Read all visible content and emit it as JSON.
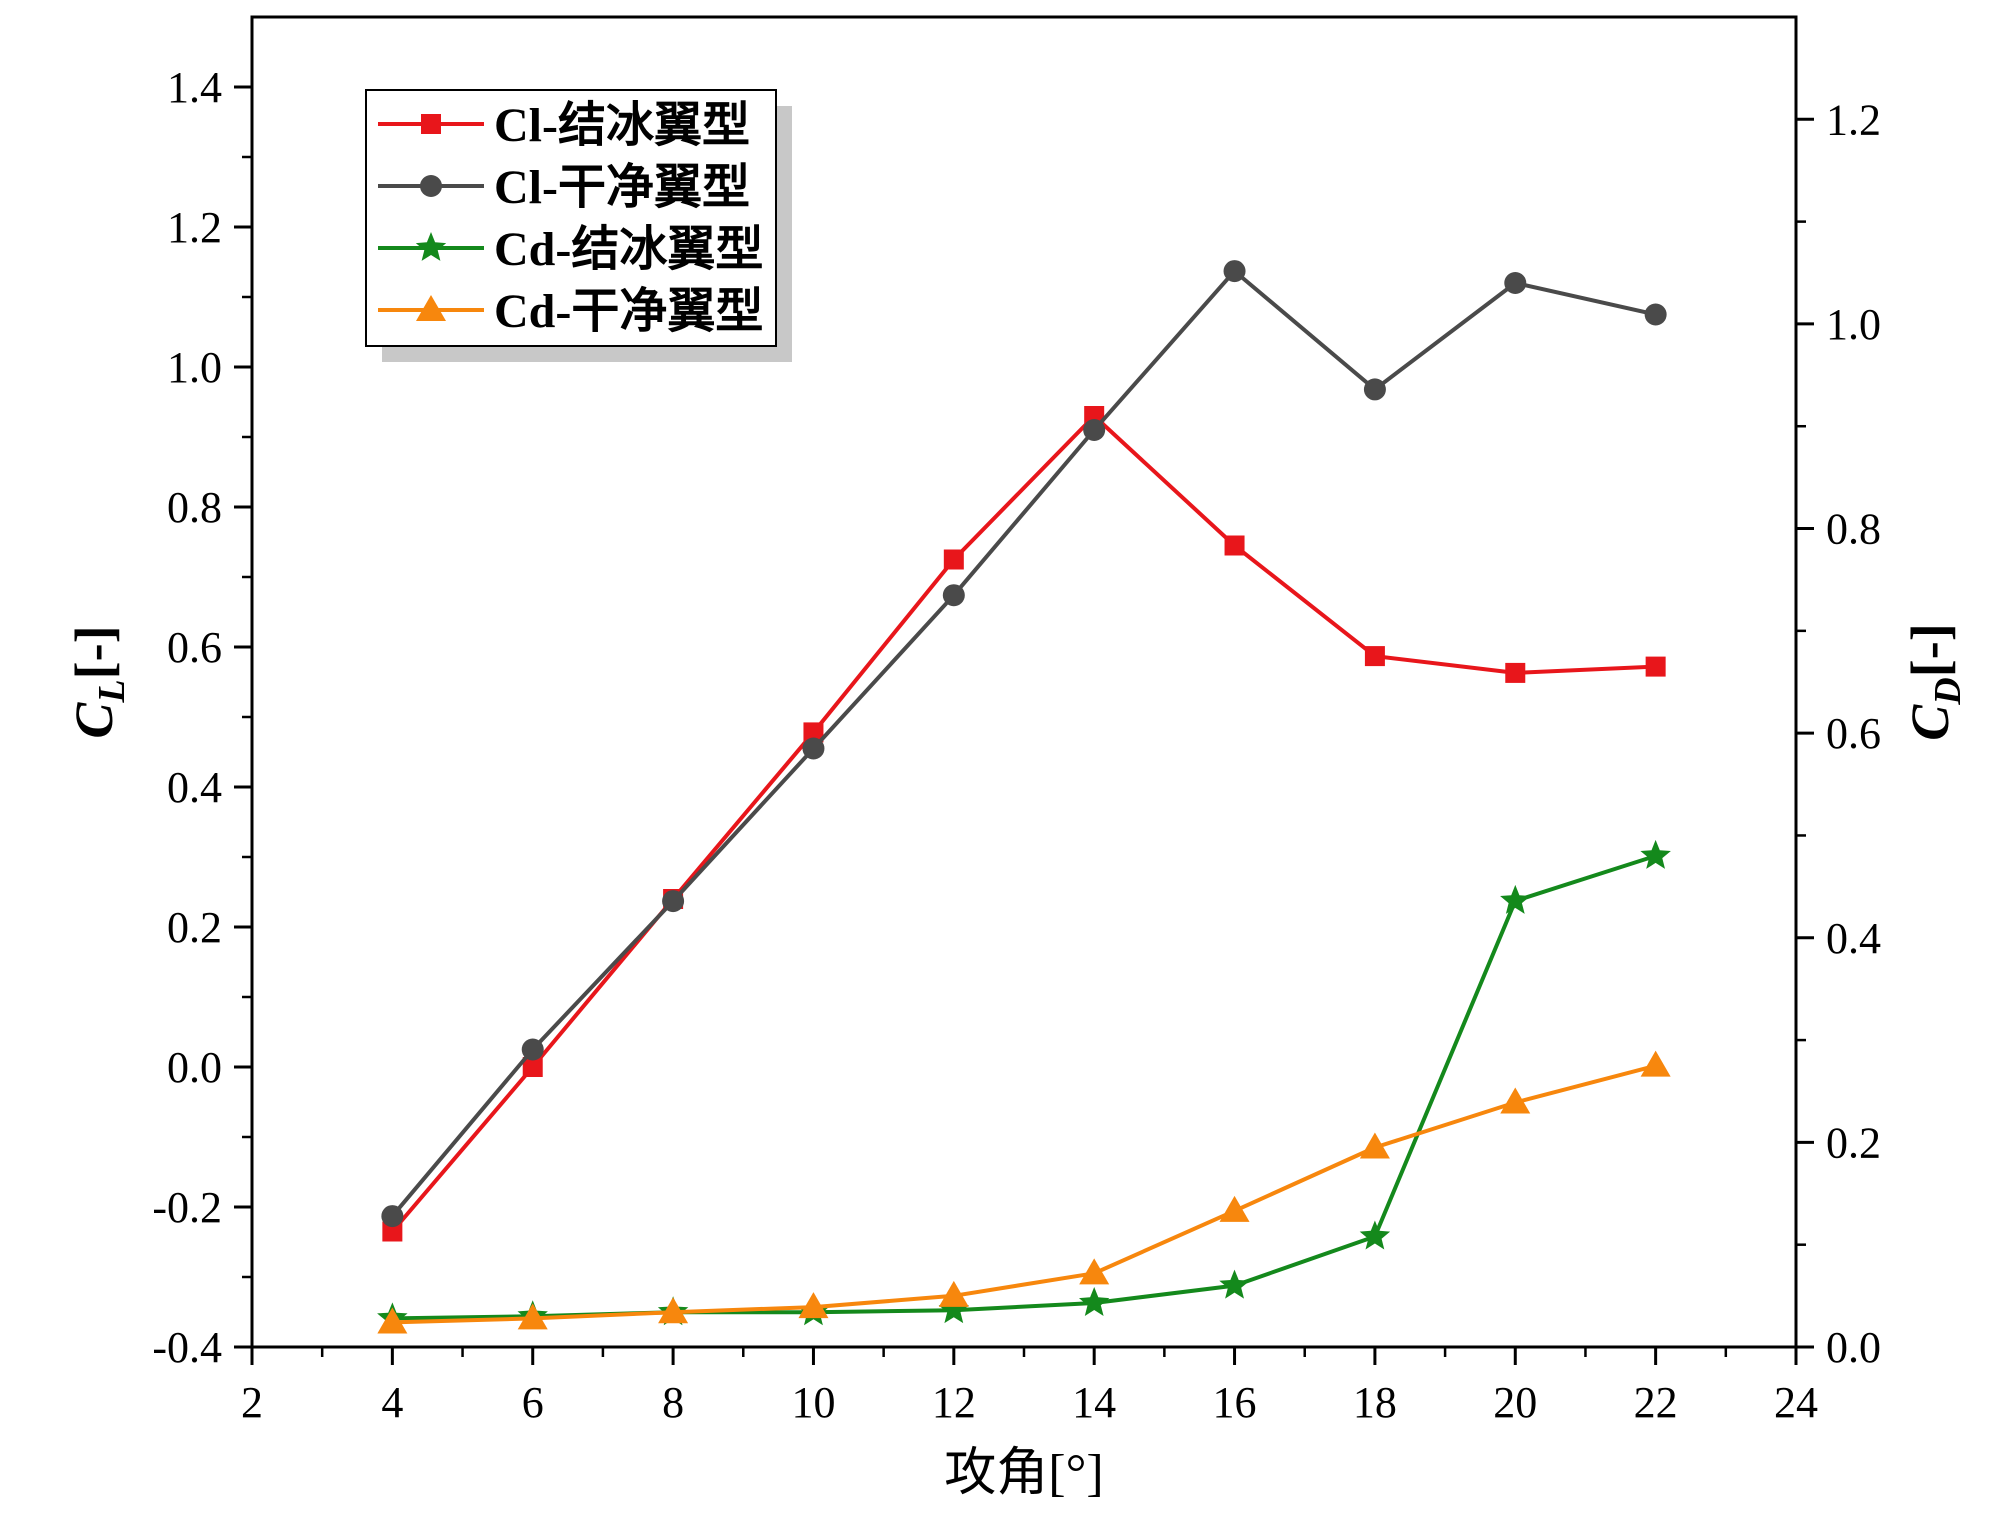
{
  "chart_data": {
    "type": "line",
    "xlabel": "攻角[°]",
    "y_left_label": {
      "main": "C",
      "sub": "L",
      "suffix": "[-]"
    },
    "y_right_label": {
      "main": "C",
      "sub": "D",
      "suffix": "[-]"
    },
    "xlim": [
      2,
      24
    ],
    "ylim_left": [
      -0.4,
      1.5
    ],
    "ylim_right": [
      0.0,
      1.3
    ],
    "x_ticks": [
      "2",
      "4",
      "6",
      "8",
      "10",
      "12",
      "14",
      "16",
      "18",
      "20",
      "22",
      "24"
    ],
    "y_left_ticks": [
      "-0.4",
      "-0.2",
      "0.0",
      "0.2",
      "0.4",
      "0.6",
      "0.8",
      "1.0",
      "1.2",
      "1.4"
    ],
    "y_right_ticks": [
      "0.0",
      "0.2",
      "0.4",
      "0.6",
      "0.8",
      "1.0",
      "1.2"
    ],
    "x": [
      4,
      6,
      8,
      10,
      12,
      14,
      16,
      18,
      20,
      22
    ],
    "legend_position": "top-left",
    "grid": false,
    "series": [
      {
        "name": "Cl-结冰翼型",
        "axis": "left",
        "color": "#e8161b",
        "marker": "square",
        "values": [
          -0.235,
          0.0,
          0.24,
          0.478,
          0.725,
          0.93,
          0.745,
          0.587,
          0.563,
          0.572
        ]
      },
      {
        "name": "Cl-干净翼型",
        "axis": "left",
        "color": "#4a4a4a",
        "marker": "circle",
        "values": [
          -0.213,
          0.025,
          0.237,
          0.455,
          0.674,
          0.91,
          1.137,
          0.968,
          1.12,
          1.075
        ]
      },
      {
        "name": "Cd-结冰翼型",
        "axis": "right",
        "color": "#14891c",
        "marker": "star",
        "values": [
          0.028,
          0.03,
          0.034,
          0.034,
          0.036,
          0.043,
          0.06,
          0.108,
          0.436,
          0.48
        ]
      },
      {
        "name": "Cd-干净翼型",
        "axis": "right",
        "color": "#f7870d",
        "marker": "triangle",
        "values": [
          0.024,
          0.028,
          0.034,
          0.039,
          0.05,
          0.072,
          0.133,
          0.195,
          0.239,
          0.275
        ]
      }
    ]
  }
}
